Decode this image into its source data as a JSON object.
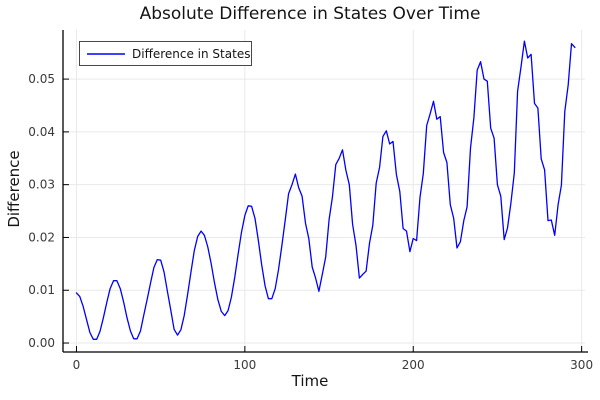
{
  "chart_data": {
    "type": "line",
    "title": "Absolute Difference in States Over Time",
    "xlabel": "Time",
    "ylabel": "Difference",
    "legend_position": "top-left",
    "grid": true,
    "axes": {
      "xlim": [
        -8,
        302
      ],
      "ylim": [
        -0.0017,
        0.0593
      ],
      "xticks": [
        0,
        100,
        200,
        300
      ],
      "xtick_labels": [
        "0",
        "100",
        "200",
        "300"
      ],
      "yticks": [
        0,
        0.01,
        0.02,
        0.03,
        0.04,
        0.05
      ],
      "ytick_labels": [
        "0.00",
        "0.01",
        "0.02",
        "0.03",
        "0.04",
        "0.05"
      ]
    },
    "colors": {
      "line": "#0000ff",
      "grid": "#e9e9e9",
      "axis": "#000000",
      "tick_text": "#3a3a3a",
      "text": "#141414",
      "legend_border": "#474747"
    },
    "series": [
      {
        "name": "Difference in States",
        "color": "#0000ff",
        "x": [
          0,
          2,
          4,
          6,
          8,
          10,
          12,
          14,
          16,
          18,
          20,
          22,
          24,
          26,
          28,
          30,
          32,
          34,
          36,
          38,
          40,
          42,
          44,
          46,
          48,
          50,
          52,
          54,
          56,
          58,
          60,
          62,
          64,
          66,
          68,
          70,
          72,
          74,
          76,
          78,
          80,
          82,
          84,
          86,
          88,
          90,
          92,
          94,
          96,
          98,
          100,
          102,
          104,
          106,
          108,
          110,
          112,
          114,
          116,
          118,
          120,
          122,
          124,
          126,
          128,
          130,
          132,
          134,
          136,
          138,
          140,
          142,
          144,
          146,
          148,
          150,
          152,
          154,
          156,
          158,
          160,
          162,
          164,
          166,
          168,
          170,
          172,
          174,
          176,
          178,
          180,
          182,
          184,
          186,
          188,
          190,
          192,
          194,
          196,
          198,
          200,
          202,
          204,
          206,
          208,
          210,
          212,
          214,
          216,
          218,
          220,
          222,
          224,
          226,
          228,
          230,
          232,
          234,
          236,
          238,
          240,
          242,
          244,
          246,
          248,
          250,
          252,
          254,
          256,
          258,
          260,
          262,
          264,
          266,
          268,
          270,
          272,
          274,
          276,
          278,
          280,
          282,
          284,
          286,
          288,
          290,
          292,
          294,
          296
        ],
        "y": [
          0.0095,
          0.0088,
          0.0069,
          0.0044,
          0.002,
          0.0007,
          0.0007,
          0.0022,
          0.0048,
          0.0077,
          0.0103,
          0.0118,
          0.0118,
          0.0103,
          0.0078,
          0.0048,
          0.0023,
          0.0008,
          0.0008,
          0.0023,
          0.0053,
          0.0083,
          0.0114,
          0.0143,
          0.0158,
          0.0157,
          0.0135,
          0.0098,
          0.0062,
          0.0026,
          0.0015,
          0.0025,
          0.0052,
          0.0092,
          0.0135,
          0.0175,
          0.0202,
          0.0212,
          0.0204,
          0.0182,
          0.015,
          0.0114,
          0.0082,
          0.006,
          0.0052,
          0.0061,
          0.0087,
          0.0125,
          0.0168,
          0.021,
          0.0242,
          0.026,
          0.0259,
          0.0236,
          0.0195,
          0.0148,
          0.0108,
          0.0084,
          0.0084,
          0.0103,
          0.0139,
          0.0185,
          0.0234,
          0.0283,
          0.03,
          0.032,
          0.0294,
          0.0278,
          0.0227,
          0.0198,
          0.0144,
          0.0123,
          0.0098,
          0.013,
          0.0163,
          0.0234,
          0.0276,
          0.0338,
          0.035,
          0.0366,
          0.0327,
          0.03,
          0.0225,
          0.0185,
          0.0123,
          0.013,
          0.0136,
          0.0189,
          0.0223,
          0.0303,
          0.0333,
          0.0391,
          0.0402,
          0.0377,
          0.0382,
          0.0319,
          0.0287,
          0.0217,
          0.0212,
          0.0173,
          0.0198,
          0.0194,
          0.0276,
          0.0321,
          0.0412,
          0.0434,
          0.0458,
          0.0424,
          0.0429,
          0.0361,
          0.0342,
          0.0262,
          0.0236,
          0.018,
          0.0192,
          0.0232,
          0.0258,
          0.0369,
          0.0427,
          0.0517,
          0.0533,
          0.05,
          0.0496,
          0.0407,
          0.0388,
          0.03,
          0.0278,
          0.0196,
          0.0218,
          0.0265,
          0.0322,
          0.0477,
          0.0523,
          0.0572,
          0.054,
          0.0547,
          0.0454,
          0.0445,
          0.0349,
          0.0328,
          0.0232,
          0.0233,
          0.0204,
          0.0262,
          0.0299,
          0.0439,
          0.0489,
          0.0567,
          0.056
        ]
      }
    ]
  }
}
